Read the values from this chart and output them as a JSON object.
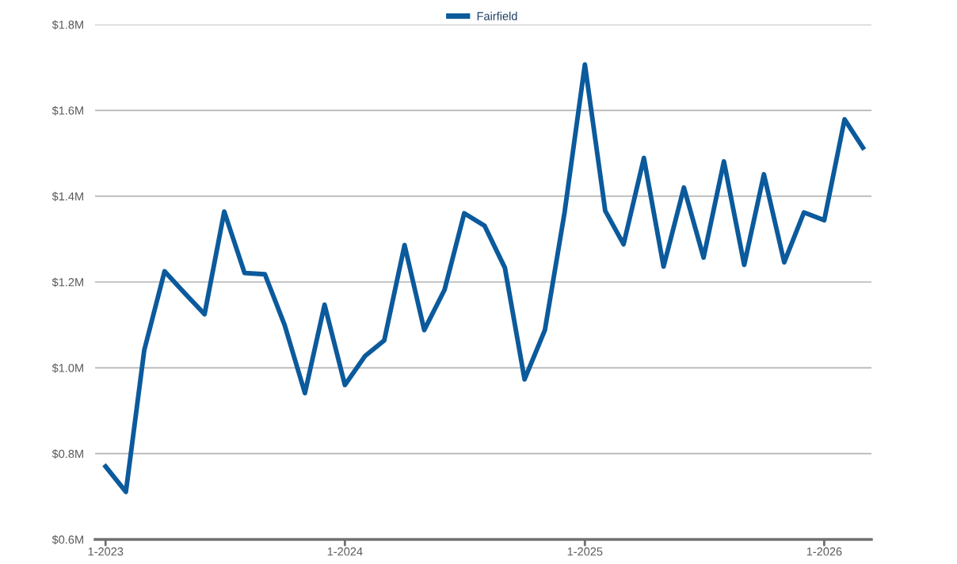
{
  "chart_data": {
    "type": "line",
    "x": [
      "2023-01",
      "2023-02",
      "2023-03",
      "2023-04",
      "2023-05",
      "2023-06",
      "2023-07",
      "2023-08",
      "2023-09",
      "2023-10",
      "2023-11",
      "2023-12",
      "2024-01",
      "2024-02",
      "2024-03",
      "2024-04",
      "2024-05",
      "2024-06",
      "2024-07",
      "2024-08",
      "2024-09",
      "2024-10",
      "2024-11",
      "2024-12",
      "2025-01",
      "2025-02",
      "2025-03",
      "2025-04",
      "2025-05",
      "2025-06",
      "2025-07",
      "2025-08",
      "2025-09",
      "2025-10",
      "2025-11",
      "2025-12",
      "2026-01",
      "2026-02",
      "2026-03"
    ],
    "series": [
      {
        "name": "Fairfield",
        "color": "#0b5a9c",
        "values": [
          0.77,
          0.711,
          1.041,
          1.225,
          1.175,
          1.125,
          1.364,
          1.221,
          1.218,
          1.1,
          0.941,
          1.147,
          0.96,
          1.028,
          1.064,
          1.286,
          1.088,
          1.182,
          1.36,
          1.331,
          1.233,
          0.973,
          1.088,
          1.362,
          1.707,
          1.366,
          1.288,
          1.489,
          1.236,
          1.42,
          1.257,
          1.481,
          1.24,
          1.451,
          1.246,
          1.362,
          1.344,
          1.579,
          1.513
        ]
      }
    ],
    "xlim": [
      "2022-12-16",
      "2026-03-14"
    ],
    "xticks": [
      {
        "value": "2023-01",
        "label": "1-2023"
      },
      {
        "value": "2024-01",
        "label": "1-2024"
      },
      {
        "value": "2025-01",
        "label": "1-2025"
      },
      {
        "value": "2026-01",
        "label": "1-2026"
      }
    ],
    "ylim": [
      0.6,
      1.8
    ],
    "yticks": [
      {
        "value": 0.6,
        "label": "$0.6M"
      },
      {
        "value": 0.8,
        "label": "$0.8M"
      },
      {
        "value": 1.0,
        "label": "$1.0M"
      },
      {
        "value": 1.2,
        "label": "$1.2M"
      },
      {
        "value": 1.4,
        "label": "$1.4M"
      },
      {
        "value": 1.6,
        "label": "$1.6M"
      },
      {
        "value": 1.8,
        "label": "$1.8M"
      }
    ],
    "grid": "y",
    "legend": "top",
    "line_style": "solid"
  }
}
